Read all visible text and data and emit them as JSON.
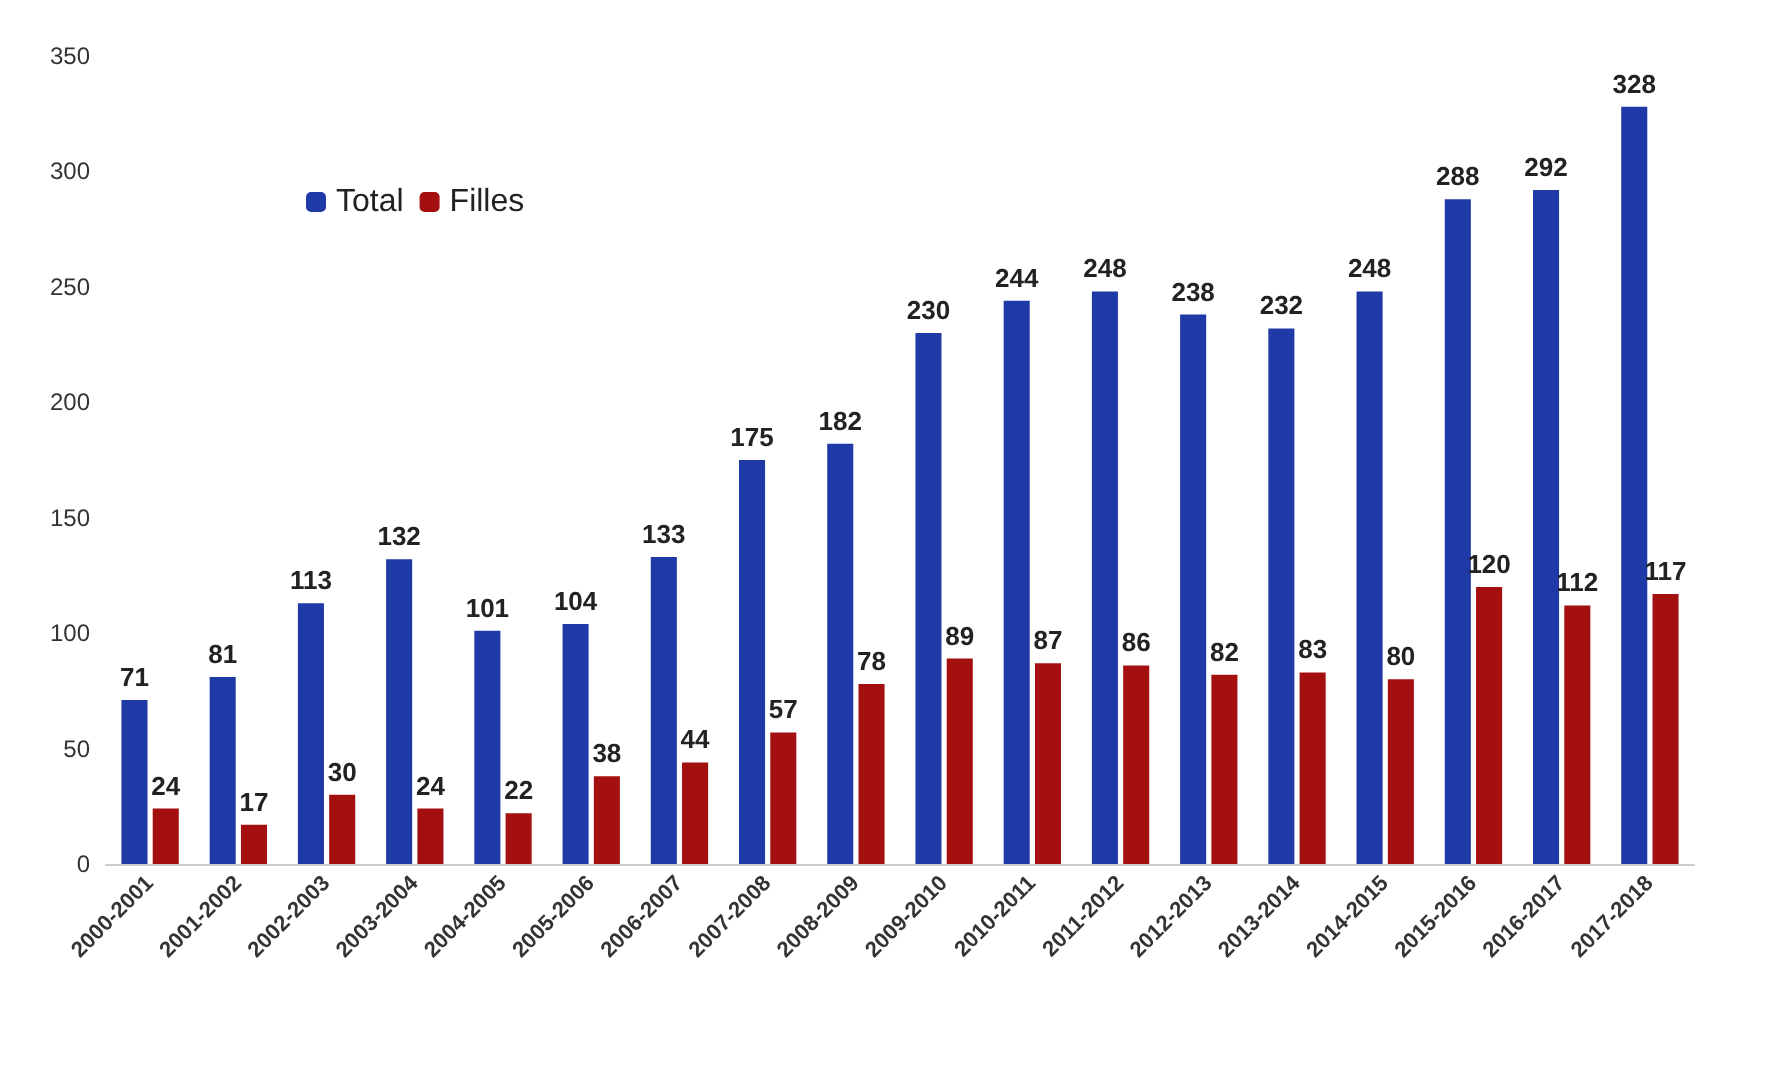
{
  "chart_data": {
    "type": "bar",
    "categories": [
      "2000-2001",
      "2001-2002",
      "2002-2003",
      "2003-2004",
      "2004-2005",
      "2005-2006",
      "2006-2007",
      "2007-2008",
      "2008-2009",
      "2009-2010",
      "2010-2011",
      "2011-2012",
      "2012-2013",
      "2013-2014",
      "2014-2015",
      "2015-2016",
      "2016-2017",
      "2017-2018"
    ],
    "series": [
      {
        "name": "Total",
        "color": "#1f3aa6",
        "values": [
          71,
          81,
          113,
          132,
          101,
          104,
          133,
          175,
          182,
          230,
          244,
          248,
          238,
          232,
          248,
          288,
          292,
          328
        ]
      },
      {
        "name": "Filles",
        "color": "#a3100f",
        "values": [
          24,
          17,
          30,
          24,
          22,
          38,
          44,
          57,
          78,
          89,
          87,
          86,
          82,
          83,
          80,
          120,
          112,
          117
        ]
      }
    ],
    "ylim": [
      0,
      350
    ],
    "yticks": [
      0,
      50,
      100,
      150,
      200,
      250,
      300,
      350
    ],
    "grid": false,
    "legend": "top left",
    "data_labels": true
  }
}
